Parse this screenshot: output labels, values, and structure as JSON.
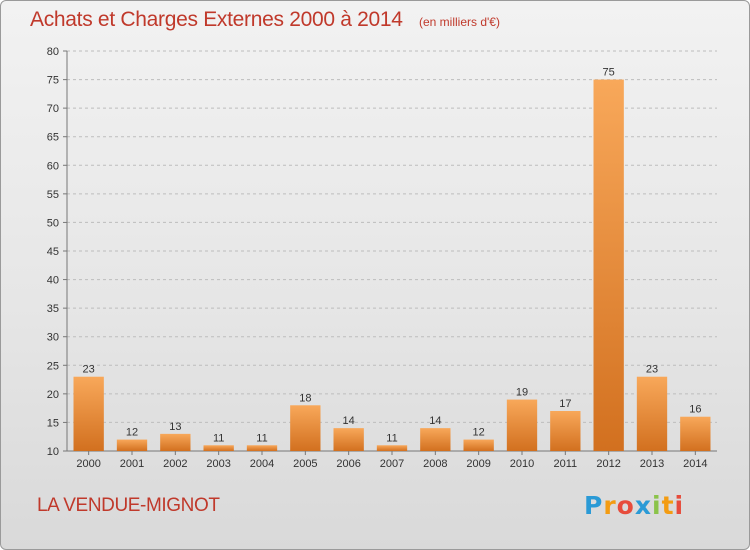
{
  "header": {
    "title": "Achats et Charges Externes 2000 à 2014",
    "subtitle": "(en milliers d'€)"
  },
  "footer": {
    "place": "LA VENDUE-MIGNOT",
    "brand_letters": [
      "P",
      "r",
      "o",
      "x",
      "i",
      "t",
      "i"
    ],
    "brand_colors": [
      "#2a9ad6",
      "#f39c12",
      "#e74c3c",
      "#2a9ad6",
      "#8bc34a",
      "#f39c12",
      "#e74c3c"
    ]
  },
  "colors": {
    "bar_light": "#f8a85a",
    "bar_dark": "#d2701f",
    "grid": "#bdbdbd",
    "title": "#c0392b"
  },
  "chart_data": {
    "type": "bar",
    "categories": [
      "2000",
      "2001",
      "2002",
      "2003",
      "2004",
      "2005",
      "2006",
      "2007",
      "2008",
      "2009",
      "2010",
      "2011",
      "2012",
      "2013",
      "2014"
    ],
    "values": [
      23,
      12,
      13,
      11,
      11,
      18,
      14,
      11,
      14,
      12,
      19,
      17,
      75,
      23,
      16
    ],
    "data_labels": [
      "23",
      "12",
      "13",
      "11",
      "11",
      "18",
      "14",
      "11",
      "14",
      "12",
      "19",
      "17",
      "75",
      "23",
      "16"
    ],
    "title": "Achats et Charges Externes 2000 à 2014",
    "xlabel": "",
    "ylabel": "",
    "ylim": [
      10,
      80
    ],
    "yticks": [
      "10",
      "15",
      "20",
      "25",
      "30",
      "35",
      "40",
      "45",
      "50",
      "55",
      "60",
      "65",
      "70",
      "75",
      "80"
    ],
    "grid": true
  }
}
